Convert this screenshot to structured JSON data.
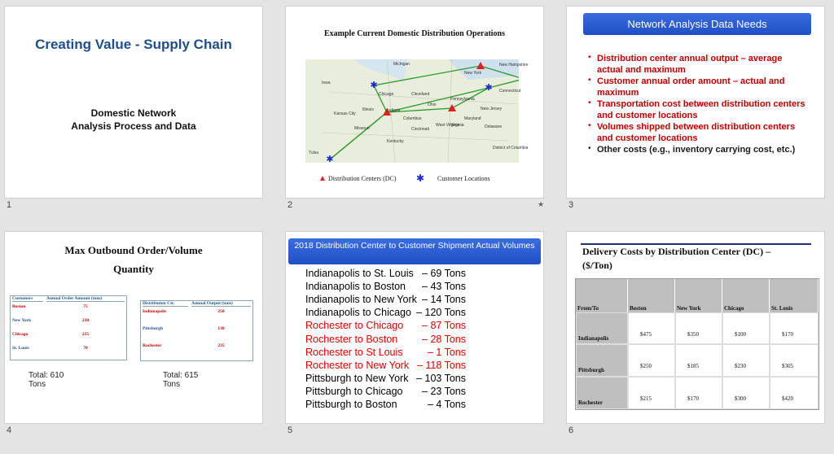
{
  "slides": [
    {
      "number": "1",
      "title": "Creating Value - Supply Chain",
      "subtitle": [
        "Domestic Network",
        "Analysis Process and Data"
      ]
    },
    {
      "number": "2",
      "title": "Example Current Domestic Distribution Operations",
      "map_labels": [
        "Michigan",
        "New York",
        "New Hampshire",
        "Connecticut",
        "Iowa",
        "Illinois",
        "Indiana",
        "Ohio",
        "Pennsylvania",
        "Maryland",
        "New Jersey",
        "Delaware",
        "West Virginia",
        "Virginia",
        "Kentucky",
        "Missouri",
        "Kansas City",
        "Chicago",
        "Cleveland",
        "Columbus",
        "Cincinnati",
        "District of Columbia",
        "Tulsa"
      ],
      "legend": [
        "Distribution Centers (DC)",
        "Customer Locations"
      ]
    },
    {
      "number": "3",
      "title": "Network Analysis Data Needs",
      "bullets": [
        {
          "text": "Distribution center annual output – average actual and maximum",
          "color": "#c00000"
        },
        {
          "text": "Customer annual order amount – actual and maximum",
          "color": "#c00000"
        },
        {
          "text": "Transportation cost between distribution centers and customer locations",
          "color": "#c00000"
        },
        {
          "text": "Volumes shipped between distribution centers and customer locations",
          "color": "#c00000"
        },
        {
          "text": "Other costs (e.g., inventory carrying cost, etc.)",
          "color": "#1a1a1a"
        }
      ]
    },
    {
      "number": "4",
      "title": [
        "Max Outbound Order/Volume",
        "Quantity"
      ],
      "customers": {
        "header": [
          "Customers",
          "Annual Order Amount (tons)"
        ],
        "rows": [
          [
            "Boston",
            "75"
          ],
          [
            "New York",
            "230"
          ],
          [
            "Chicago",
            "235"
          ],
          [
            "St. Louis",
            "70"
          ]
        ],
        "total": [
          "Total: 610",
          "Tons"
        ]
      },
      "centers": {
        "header": [
          "Distribution Ctr.",
          "Annual Output (tons)"
        ],
        "rows": [
          [
            "Indianapolis",
            "250"
          ],
          [
            "Pittsburgh",
            "130"
          ],
          [
            "Rochester",
            "235"
          ]
        ],
        "total": [
          "Total: 615",
          "Tons"
        ]
      }
    },
    {
      "number": "5",
      "title": "2018 Distribution Center to Customer Shipment Actual Volumes",
      "lines": [
        {
          "route": "Indianapolis to St. Louis",
          "amount": "– 69 Tons",
          "color": "#000000"
        },
        {
          "route": "Indianapolis to Boston",
          "amount": "– 43 Tons",
          "color": "#000000"
        },
        {
          "route": "Indianapolis to New York",
          "amount": "– 14 Tons",
          "color": "#000000"
        },
        {
          "route": "Indianapolis to Chicago",
          "amount": "– 120 Tons",
          "color": "#000000"
        },
        {
          "route": "Rochester to Chicago",
          "amount": "– 87 Tons",
          "color": "#e00000"
        },
        {
          "route": "Rochester to Boston",
          "amount": "– 28 Tons",
          "color": "#e00000"
        },
        {
          "route": "Rochester to St Louis",
          "amount": "– 1 Tons",
          "color": "#e00000"
        },
        {
          "route": "Rochester to New York",
          "amount": "– 118 Tons",
          "color": "#e00000"
        },
        {
          "route": "Pittsburgh to New York",
          "amount": "– 103 Tons",
          "color": "#000000"
        },
        {
          "route": "Pittsburgh to Chicago",
          "amount": "– 23 Tons",
          "color": "#000000"
        },
        {
          "route": "Pittsburgh to Boston",
          "amount": "– 4 Tons",
          "color": "#000000"
        }
      ]
    },
    {
      "number": "6",
      "title": [
        "Delivery Costs by Distribution Center (DC) –",
        "($/Ton)"
      ],
      "table": {
        "header": [
          "From/To",
          "Boston",
          "New York",
          "Chicago",
          "St. Louis"
        ],
        "rows": [
          [
            "Indianapolis",
            "$475",
            "$350",
            "$100",
            "$170"
          ],
          [
            "Pittsburgh",
            "$250",
            "$185",
            "$230",
            "$305"
          ],
          [
            "Rochester",
            "$215",
            "$170",
            "$300",
            "$420"
          ]
        ]
      }
    }
  ]
}
